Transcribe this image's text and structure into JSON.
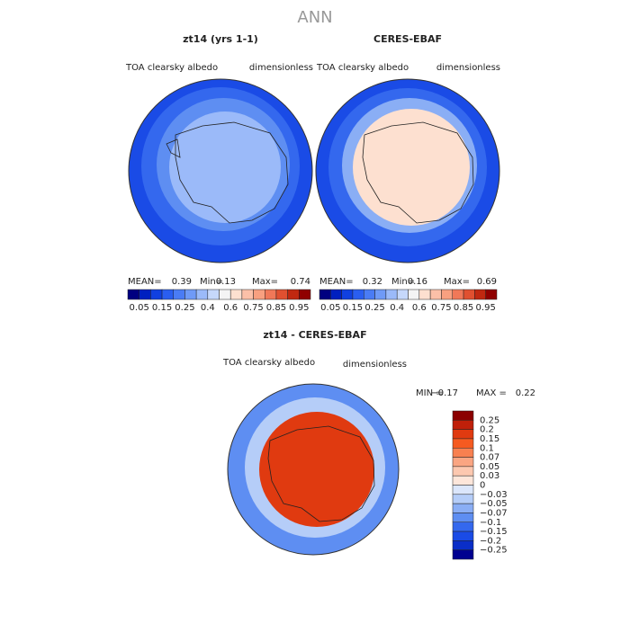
{
  "title": "ANN",
  "panels": [
    {
      "title": "zt14 (yrs 1-1)",
      "variable": "TOA clearsky albedo",
      "units": "dimensionless",
      "stats": [
        "MEAN=",
        "0.39",
        "Min=",
        "0.13",
        "Max=",
        "0.74"
      ]
    },
    {
      "title": "CERES-EBAF",
      "variable": "TOA clearsky albedo",
      "units": "dimensionless",
      "stats": [
        "MEAN=",
        "0.32",
        "Min=",
        "0.16",
        "Max=",
        "0.69"
      ]
    }
  ],
  "colorbar": {
    "labels": [
      "0.05",
      "0.15",
      "0.25",
      "0.4",
      "0.6",
      "0.75",
      "0.85",
      "0.95"
    ],
    "colors": [
      "#000080",
      "#0020c0",
      "#1040e0",
      "#2a5ef0",
      "#4a7cf5",
      "#6f9af7",
      "#9bbaf9",
      "#c6d8fb",
      "#f4f4f4",
      "#fde0d0",
      "#fbc0a8",
      "#f8a080",
      "#f07858",
      "#e05030",
      "#c02810",
      "#900000"
    ]
  },
  "difference": {
    "title": "zt14 - CERES-EBAF",
    "variable": "TOA clearsky albedo",
    "units": "dimensionless",
    "stats": [
      "MIN =",
      "−0.17",
      "MAX =",
      "0.22"
    ],
    "colorbar": {
      "labels": [
        "0.25",
        "0.2",
        "0.15",
        "0.1",
        "0.07",
        "0.05",
        "0.03",
        "0",
        "−0.03",
        "−0.05",
        "−0.07",
        "−0.1",
        "−0.15",
        "−0.2",
        "−0.25"
      ],
      "colors": [
        "#8b0000",
        "#c0200a",
        "#e03a10",
        "#f55a20",
        "#f88050",
        "#faa582",
        "#fcc8b0",
        "#fde6da",
        "#dbe6fb",
        "#b5cdf8",
        "#8aaef5",
        "#5e8ef2",
        "#3468ee",
        "#1a4be6",
        "#0a2ec8",
        "#000090"
      ]
    }
  }
}
